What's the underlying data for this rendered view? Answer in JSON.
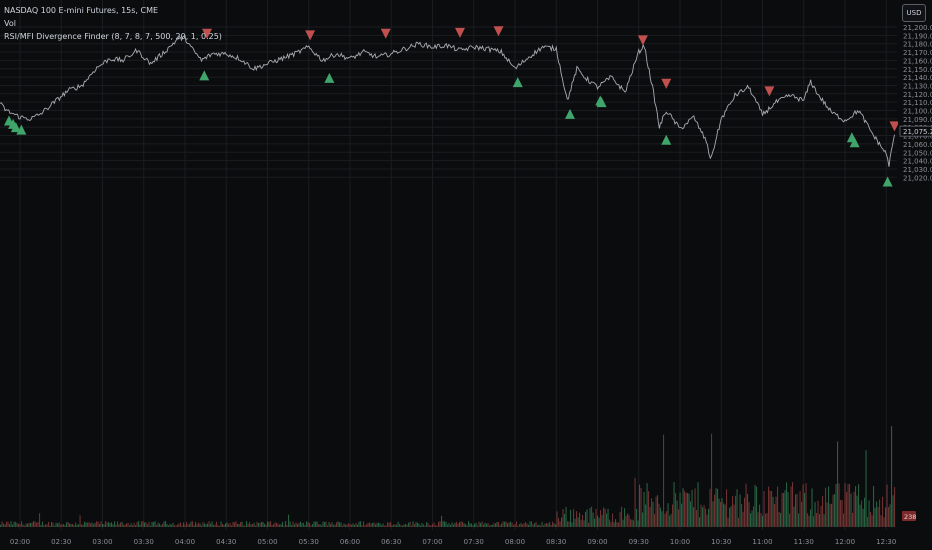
{
  "legend": {
    "title": "NASDAQ 100 E-mini Futures, 15s, CME",
    "vol": "Vol",
    "indicator": "RSI/MFI Divergence Finder (8, 7, 8, 7, 500, 20, 1, 0.25)"
  },
  "currency_button": "USD",
  "colors": {
    "background": "#0b0c0e",
    "price_line": "#b9bcc4",
    "bull": "#3fa56b",
    "bear": "#c0504d",
    "axis_text": "#8a8e97",
    "grid": "#1a1c21"
  },
  "chart_data": {
    "type": "line",
    "title": "NASDAQ 100 E-mini Futures, 15s, CME",
    "xlabel": "",
    "ylabel": "",
    "ylim": [
      21015,
      21205
    ],
    "x_ticks": [
      "02:00",
      "02:30",
      "03:00",
      "03:30",
      "04:00",
      "04:30",
      "05:00",
      "05:30",
      "06:00",
      "06:30",
      "07:00",
      "07:30",
      "08:00",
      "08:30",
      "09:00",
      "09:30",
      "10:00",
      "10:30",
      "11:00",
      "11:30",
      "12:00",
      "12:30"
    ],
    "y_ticks": [
      21200,
      21190,
      21180,
      21170,
      21160,
      21150,
      21140,
      21130,
      21120,
      21110,
      21100,
      21090,
      21080,
      21070,
      21060,
      21050,
      21040,
      21030,
      21020
    ],
    "price_series": {
      "name": "Price",
      "x": [
        "01:40",
        "01:50",
        "02:00",
        "02:08",
        "02:15",
        "02:25",
        "02:35",
        "02:45",
        "02:55",
        "03:05",
        "03:15",
        "03:25",
        "03:35",
        "03:45",
        "03:55",
        "04:00",
        "04:05",
        "04:12",
        "04:20",
        "04:30",
        "04:40",
        "04:50",
        "05:00",
        "05:10",
        "05:20",
        "05:30",
        "05:40",
        "05:50",
        "06:00",
        "06:10",
        "06:20",
        "06:30",
        "06:40",
        "06:50",
        "07:00",
        "07:10",
        "07:20",
        "07:30",
        "07:40",
        "07:50",
        "08:00",
        "08:10",
        "08:20",
        "08:30",
        "08:38",
        "08:45",
        "08:52",
        "09:00",
        "09:10",
        "09:20",
        "09:30",
        "09:34",
        "09:36",
        "09:40",
        "09:45",
        "09:50",
        "10:00",
        "10:10",
        "10:20",
        "10:22",
        "10:25",
        "10:30",
        "10:40",
        "10:50",
        "11:00",
        "11:10",
        "11:20",
        "11:30",
        "11:35",
        "11:40",
        "11:50",
        "12:00",
        "12:10",
        "12:15",
        "12:20",
        "12:25",
        "12:30",
        "12:32",
        "12:36"
      ],
      "y": [
        21118,
        21100,
        21092,
        21090,
        21096,
        21110,
        21124,
        21130,
        21150,
        21162,
        21160,
        21172,
        21156,
        21170,
        21186,
        21187,
        21174,
        21160,
        21168,
        21168,
        21162,
        21150,
        21156,
        21162,
        21168,
        21176,
        21160,
        21168,
        21162,
        21170,
        21164,
        21168,
        21174,
        21180,
        21176,
        21178,
        21172,
        21176,
        21174,
        21170,
        21150,
        21164,
        21176,
        21174,
        21112,
        21150,
        21138,
        21128,
        21140,
        21122,
        21170,
        21178,
        21160,
        21128,
        21080,
        21100,
        21078,
        21092,
        21060,
        21040,
        21058,
        21090,
        21118,
        21128,
        21095,
        21110,
        21118,
        21112,
        21135,
        21120,
        21098,
        21088,
        21100,
        21086,
        21072,
        21060,
        21048,
        21035,
        21071
      ]
    },
    "last_price": "21,075.25",
    "volume_label": "238",
    "buy_signals": [
      {
        "time": "01:52",
        "price": 21100
      },
      {
        "time": "01:55",
        "price": 21096
      },
      {
        "time": "01:57",
        "price": 21092
      },
      {
        "time": "02:01",
        "price": 21089
      },
      {
        "time": "04:14",
        "price": 21154
      },
      {
        "time": "05:45",
        "price": 21151
      },
      {
        "time": "08:02",
        "price": 21146
      },
      {
        "time": "08:40",
        "price": 21108
      },
      {
        "time": "09:02",
        "price": 21124
      },
      {
        "time": "09:03",
        "price": 21122
      },
      {
        "time": "09:50",
        "price": 21077
      },
      {
        "time": "12:05",
        "price": 21080
      },
      {
        "time": "12:07",
        "price": 21074
      },
      {
        "time": "12:31",
        "price": 21027
      }
    ],
    "sell_signals": [
      {
        "time": "04:16",
        "price": 21180
      },
      {
        "time": "05:31",
        "price": 21178
      },
      {
        "time": "06:26",
        "price": 21180
      },
      {
        "time": "07:20",
        "price": 21181
      },
      {
        "time": "07:48",
        "price": 21183
      },
      {
        "time": "09:33",
        "price": 21172
      },
      {
        "time": "09:50",
        "price": 21120
      },
      {
        "time": "11:05",
        "price": 21111
      },
      {
        "time": "12:36",
        "price": 21069
      }
    ]
  }
}
